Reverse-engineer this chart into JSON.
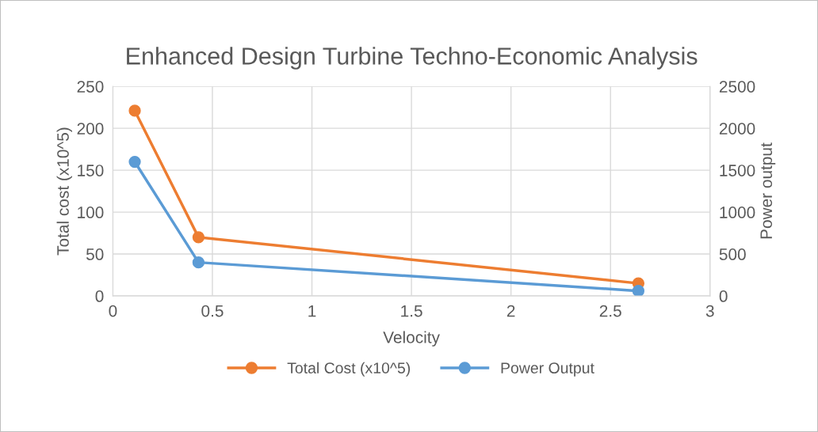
{
  "chart_data": {
    "type": "line",
    "title": "Enhanced Design Turbine Techno-Economic Analysis",
    "xlabel": "Velocity",
    "ylabel": "Total cost (x10^5)",
    "y2label": "Power output",
    "series": [
      {
        "name": "Total Cost (x10^5)",
        "color": "#ed7d31",
        "x": [
          0.11,
          0.43,
          2.64
        ],
        "values": [
          221,
          70,
          15
        ]
      },
      {
        "name": "Power Output",
        "color": "#5b9bd5",
        "x": [
          0.11,
          0.43,
          2.64
        ],
        "values": [
          1600,
          400,
          60
        ],
        "axis": "y2"
      }
    ],
    "xlim": [
      0,
      3
    ],
    "xticks": [
      0,
      0.5,
      1,
      1.5,
      2,
      2.5,
      3
    ],
    "ylim": [
      0,
      250
    ],
    "yticks": [
      0,
      50,
      100,
      150,
      200,
      250
    ],
    "y2lim": [
      0,
      2500
    ],
    "y2ticks": [
      0,
      500,
      1000,
      1500,
      2000,
      2500
    ],
    "grid": true,
    "legend": "bottom",
    "marker": "circle",
    "line_style": "solid"
  }
}
